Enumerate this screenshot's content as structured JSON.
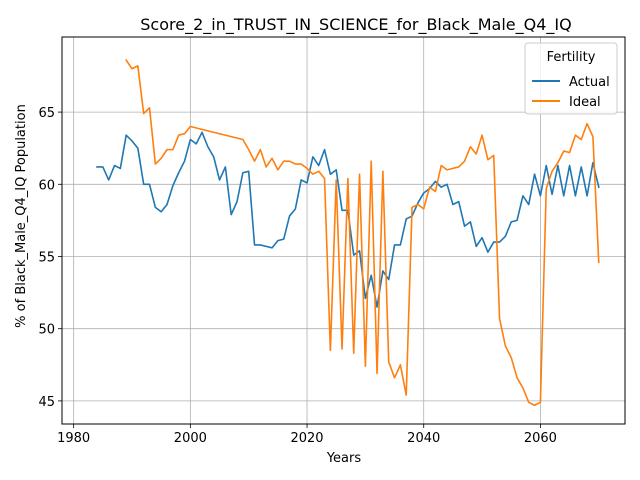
{
  "chart_data": {
    "type": "line",
    "title": "Score_2_in_TRUST_IN_SCIENCE_for_Black_Male_Q4_IQ",
    "xlabel": "Years",
    "ylabel": "% of Black_Male_Q4_IQ Population",
    "xlim": [
      1978,
      2074.5
    ],
    "ylim": [
      43.4,
      70.2
    ],
    "xticks": [
      1980,
      2000,
      2020,
      2040,
      2060
    ],
    "yticks": [
      45,
      50,
      55,
      60,
      65
    ],
    "grid": true,
    "legend": {
      "title": "Fertility",
      "placement": "upper right"
    },
    "series": [
      {
        "name": "Actual",
        "color": "#1f77b4",
        "x": [
          1984,
          1985,
          1986,
          1987,
          1988,
          1989,
          1990,
          1991,
          1992,
          1993,
          1994,
          1995,
          1996,
          1997,
          1998,
          1999,
          2000,
          2001,
          2002,
          2003,
          2004,
          2005,
          2006,
          2007,
          2008,
          2009,
          2010,
          2011,
          2012,
          2013,
          2014,
          2015,
          2016,
          2017,
          2018,
          2019,
          2020,
          2021,
          2022,
          2023,
          2024,
          2025,
          2026,
          2027,
          2028,
          2029,
          2030,
          2031,
          2032,
          2033,
          2034,
          2035,
          2036,
          2037,
          2038,
          2039,
          2040,
          2041,
          2042,
          2043,
          2044,
          2045,
          2046,
          2047,
          2048,
          2049,
          2050,
          2051,
          2052,
          2053,
          2054,
          2055,
          2056,
          2057,
          2058,
          2059,
          2060,
          2061,
          2062,
          2063,
          2064,
          2065,
          2066,
          2067,
          2068,
          2069,
          2070
        ],
        "values": [
          61.2,
          61.2,
          60.3,
          61.3,
          61.1,
          63.4,
          63.0,
          62.5,
          60.0,
          60.0,
          58.4,
          58.1,
          58.6,
          59.9,
          60.8,
          61.6,
          63.1,
          62.8,
          63.6,
          62.6,
          61.9,
          60.3,
          61.2,
          57.9,
          58.8,
          60.8,
          60.9,
          55.8,
          55.8,
          55.7,
          55.6,
          56.1,
          56.2,
          57.8,
          58.3,
          60.3,
          60.1,
          61.9,
          61.3,
          62.4,
          60.7,
          61.0,
          58.2,
          58.2,
          55.1,
          55.4,
          52.1,
          53.7,
          51.5,
          54.0,
          53.4,
          55.8,
          55.8,
          57.6,
          57.8,
          58.7,
          59.4,
          59.7,
          60.2,
          59.8,
          60.0,
          58.6,
          58.8,
          57.1,
          57.4,
          55.7,
          56.3,
          55.3,
          56.0,
          56.0,
          56.4,
          57.4,
          57.5,
          59.2,
          58.6,
          60.7,
          59.2,
          61.3,
          59.3,
          61.3,
          59.2,
          61.3,
          59.2,
          61.2,
          59.2,
          61.5,
          59.8
        ]
      },
      {
        "name": "Ideal",
        "color": "#ff7f0e",
        "x": [
          1989,
          1990,
          1991,
          1992,
          1993,
          1994,
          1995,
          1996,
          1997,
          1998,
          1999,
          2000,
          2009,
          2010,
          2011,
          2012,
          2013,
          2014,
          2015,
          2016,
          2017,
          2018,
          2019,
          2020,
          2021,
          2022,
          2023,
          2024,
          2025,
          2026,
          2027,
          2028,
          2029,
          2030,
          2031,
          2032,
          2033,
          2034,
          2035,
          2036,
          2037,
          2038,
          2039,
          2040,
          2041,
          2042,
          2043,
          2044,
          2045,
          2046,
          2047,
          2048,
          2049,
          2050,
          2051,
          2052,
          2053,
          2054,
          2055,
          2056,
          2057,
          2058,
          2059,
          2060,
          2061,
          2062,
          2063,
          2064,
          2065,
          2066,
          2067,
          2068,
          2069,
          2070
        ],
        "values": [
          68.6,
          68.0,
          68.2,
          64.9,
          65.3,
          61.4,
          61.8,
          62.4,
          62.4,
          63.4,
          63.5,
          64.0,
          63.1,
          62.4,
          61.6,
          62.4,
          61.2,
          61.8,
          61.0,
          61.6,
          61.6,
          61.4,
          61.4,
          61.1,
          60.7,
          60.9,
          60.4,
          48.5,
          60.3,
          48.6,
          60.4,
          48.3,
          60.7,
          47.4,
          61.6,
          46.9,
          60.9,
          47.7,
          46.6,
          47.5,
          45.4,
          58.4,
          58.6,
          58.3,
          59.8,
          59.5,
          61.3,
          61.0,
          61.1,
          61.2,
          61.6,
          62.6,
          62.1,
          63.4,
          61.7,
          62.0,
          50.7,
          48.8,
          48.0,
          46.6,
          45.9,
          44.9,
          44.7,
          44.9,
          59.7,
          60.9,
          61.5,
          62.3,
          62.2,
          63.4,
          63.1,
          64.2,
          63.3,
          54.6
        ]
      }
    ]
  }
}
